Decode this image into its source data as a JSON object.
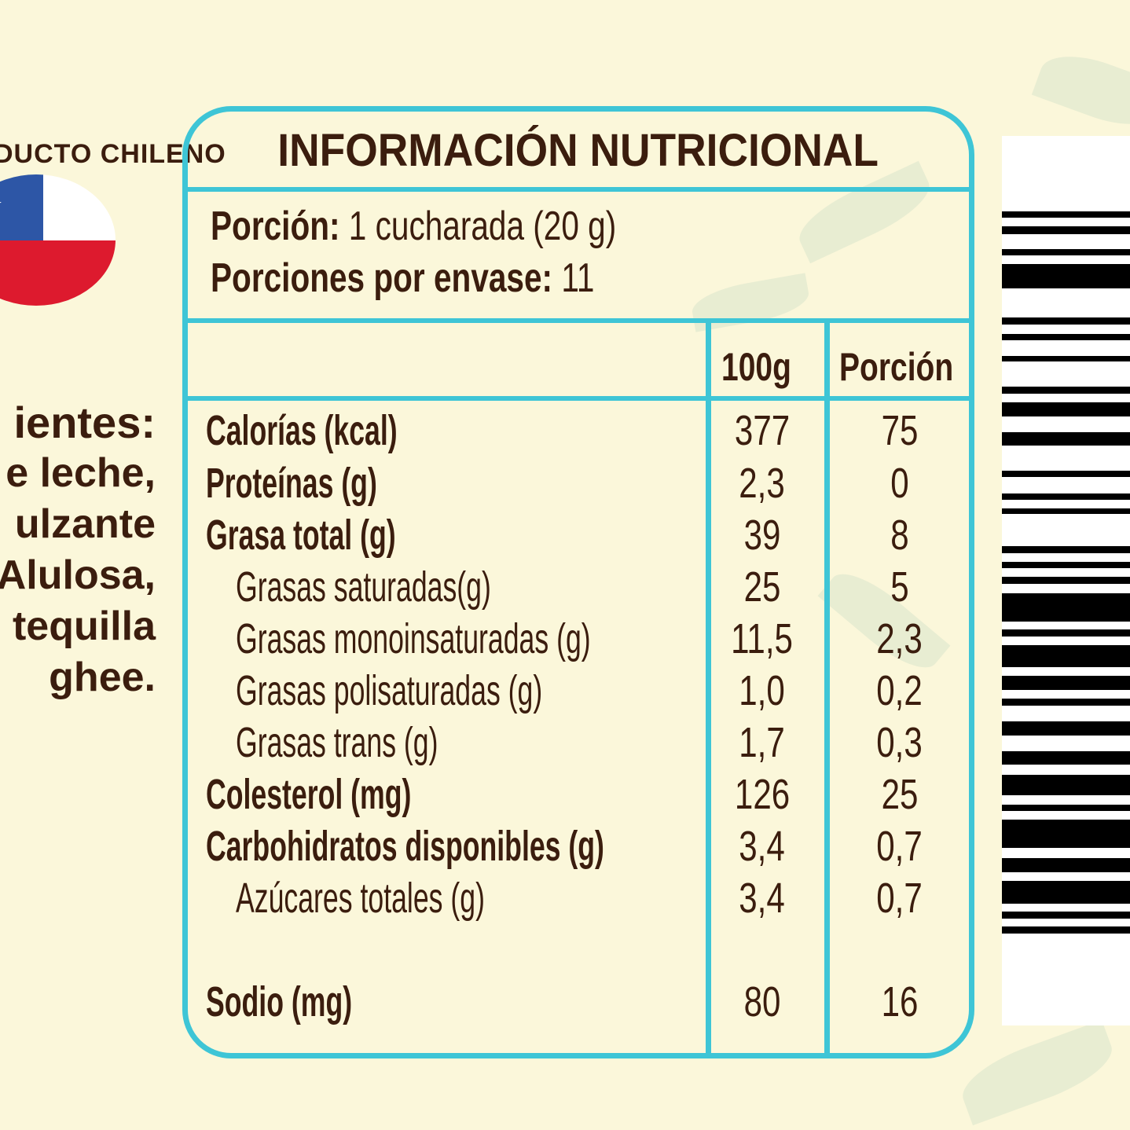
{
  "seal": {
    "text": "DUCTO CHILENO",
    "icon": "chile-flag-icon"
  },
  "ingredients": {
    "lines": [
      "ientes:",
      "e leche,",
      "ulzante",
      "Alulosa,",
      "tequilla",
      "ghee."
    ]
  },
  "panel": {
    "title": "INFORMACIÓN NUTRICIONAL",
    "portion_label": "Porción:",
    "portion_value": "1 cucharada (20 g)",
    "servings_label": "Porciones por envase:",
    "servings_value": "11",
    "col_100g": "100g",
    "col_portion": "Porción",
    "rows": [
      {
        "label": "Calorías (kcal)",
        "v100": "377",
        "vpor": "75"
      },
      {
        "label": "Proteínas (g)",
        "v100": "2,3",
        "vpor": "0"
      },
      {
        "label": "Grasa total (g)",
        "v100": "39",
        "vpor": "8"
      },
      {
        "label": "Grasas saturadas(g)",
        "v100": "25",
        "vpor": "5"
      },
      {
        "label": "Grasas monoinsaturadas (g)",
        "v100": "11,5",
        "vpor": "2,3"
      },
      {
        "label": "Grasas polisaturadas (g)",
        "v100": "1,0",
        "vpor": "0,2"
      },
      {
        "label": "Grasas trans (g)",
        "v100": "1,7",
        "vpor": "0,3"
      },
      {
        "label": "Colesterol (mg)",
        "v100": "126",
        "vpor": "25"
      },
      {
        "label": "Carbohidratos disponibles (g)",
        "v100": "3,4",
        "vpor": "0,7"
      },
      {
        "label": "Azúcares totales (g)",
        "v100": "3,4",
        "vpor": "0,7"
      },
      {
        "label": "Sodio (mg)",
        "v100": "80",
        "vpor": "16"
      }
    ]
  },
  "colors": {
    "border": "#3ec5d6",
    "text": "#3b1d0e",
    "background": "#fbf7da"
  }
}
